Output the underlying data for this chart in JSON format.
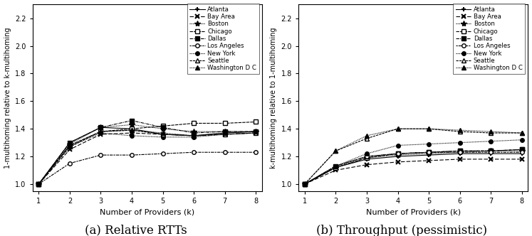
{
  "k": [
    1,
    2,
    3,
    4,
    5,
    6,
    7,
    8
  ],
  "plot_a": {
    "Atlanta": [
      1.0,
      1.3,
      1.41,
      1.4,
      1.36,
      1.35,
      1.37,
      1.38
    ],
    "Bay Area": [
      1.0,
      1.25,
      1.36,
      1.37,
      1.36,
      1.35,
      1.36,
      1.37
    ],
    "Boston": [
      1.0,
      1.29,
      1.41,
      1.43,
      1.4,
      1.38,
      1.38,
      1.38
    ],
    "Chicago": [
      1.0,
      1.28,
      1.38,
      1.4,
      1.42,
      1.44,
      1.44,
      1.45
    ],
    "Dallas": [
      1.0,
      1.3,
      1.41,
      1.46,
      1.41,
      1.37,
      1.38,
      1.38
    ],
    "Los Angeles": [
      1.0,
      1.15,
      1.21,
      1.21,
      1.22,
      1.23,
      1.23,
      1.23
    ],
    "New York": [
      1.0,
      1.27,
      1.37,
      1.35,
      1.34,
      1.34,
      1.36,
      1.37
    ],
    "Seattle": [
      1.0,
      1.27,
      1.38,
      1.39,
      1.36,
      1.35,
      1.36,
      1.37
    ],
    "Washington D C": [
      1.0,
      1.28,
      1.38,
      1.39,
      1.37,
      1.35,
      1.37,
      1.38
    ]
  },
  "plot_b": {
    "Atlanta": [
      1.0,
      1.12,
      1.18,
      1.2,
      1.21,
      1.22,
      1.22,
      1.22
    ],
    "Bay Area": [
      1.0,
      1.1,
      1.14,
      1.16,
      1.17,
      1.18,
      1.18,
      1.18
    ],
    "Boston": [
      1.0,
      1.12,
      1.19,
      1.21,
      1.22,
      1.23,
      1.24,
      1.24
    ],
    "Chicago": [
      1.0,
      1.12,
      1.19,
      1.22,
      1.23,
      1.24,
      1.24,
      1.25
    ],
    "Dallas": [
      1.0,
      1.13,
      1.2,
      1.22,
      1.23,
      1.24,
      1.24,
      1.25
    ],
    "Los Angeles": [
      1.0,
      1.13,
      1.2,
      1.22,
      1.23,
      1.23,
      1.23,
      1.23
    ],
    "New York": [
      1.0,
      1.13,
      1.22,
      1.28,
      1.29,
      1.3,
      1.31,
      1.32
    ],
    "Seattle": [
      1.0,
      1.24,
      1.33,
      1.4,
      1.4,
      1.38,
      1.37,
      1.37
    ],
    "Washington D C": [
      1.0,
      1.24,
      1.35,
      1.4,
      1.4,
      1.39,
      1.38,
      1.37
    ]
  },
  "cities": [
    "Atlanta",
    "Bay Area",
    "Boston",
    "Chicago",
    "Dallas",
    "Los Angeles",
    "New York",
    "Seattle",
    "Washington D C"
  ],
  "ylabel_a": "1-multihoming relative to k-multihoming",
  "ylabel_b": "k-multihoming relative to 1-multihoming",
  "xlabel": "Number of Providers (k)",
  "title_a": "(a) Relative RTTs",
  "title_b": "(b) Throughput (pessimistic)",
  "ylim": [
    0.95,
    2.3
  ],
  "yticks": [
    1.0,
    1.2,
    1.4,
    1.6,
    1.8,
    2.0,
    2.2
  ]
}
